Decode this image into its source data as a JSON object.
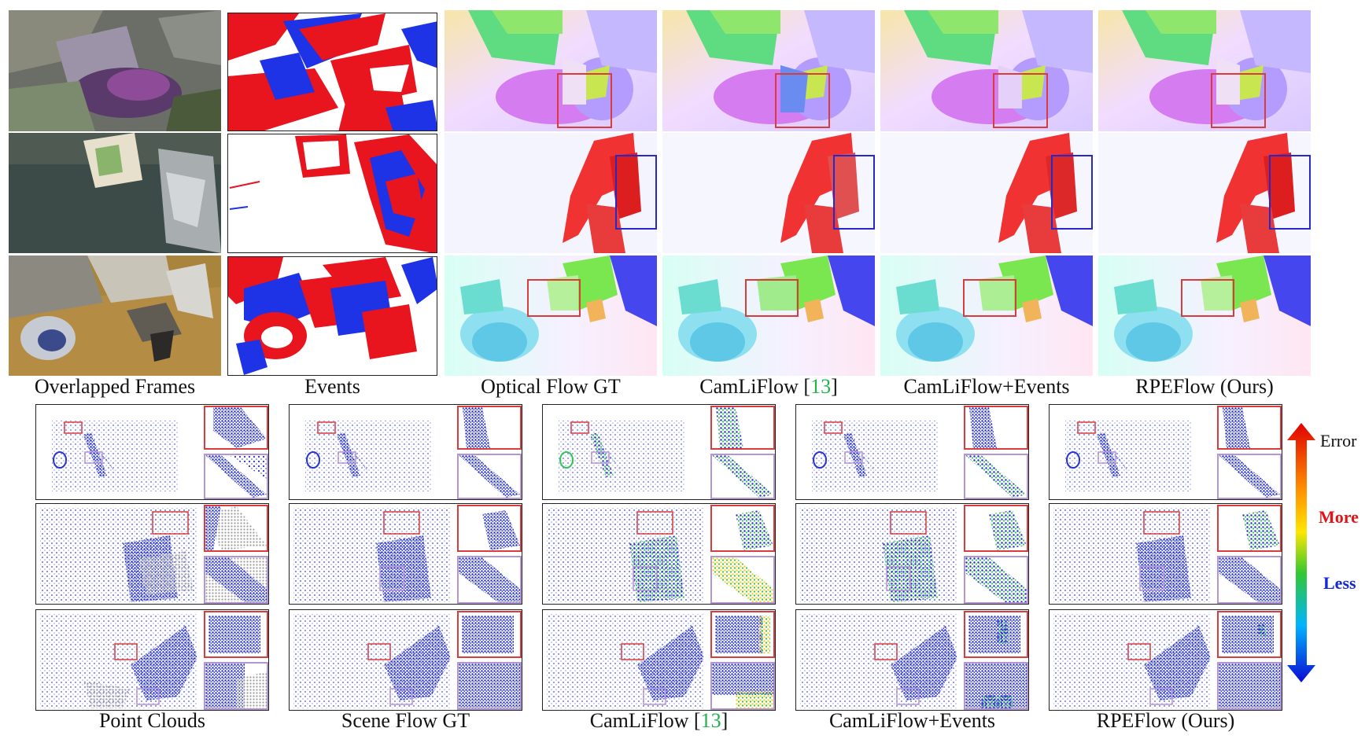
{
  "top_captions": {
    "overlapped": "Overlapped Frames",
    "events": "Events",
    "flow_gt": "Optical Flow GT",
    "camliflow_prefix": "CamLiFlow [",
    "camliflow_ref": "13",
    "camliflow_suffix": "]",
    "camliflow_events": "CamLiFlow+Events",
    "rpeflow": "RPEFlow (Ours)"
  },
  "bottom_captions": {
    "point_clouds": "Point Clouds",
    "scene_flow_gt": "Scene Flow GT",
    "camliflow_prefix": "CamLiFlow [",
    "camliflow_ref": "13",
    "camliflow_suffix": "]",
    "camliflow_events": "CamLiFlow+Events",
    "rpeflow": "RPEFlow (Ours)"
  },
  "legend": {
    "error": "Error",
    "more": "More",
    "less": "Less"
  },
  "colors": {
    "event_red": "#e8141e",
    "event_blue": "#1e32e6",
    "highlight_red": "#d83c3c",
    "highlight_blue": "#2828c8",
    "highlight_purple": "#b496d2",
    "citation_green": "#22b14c",
    "legend_more": "#e01414",
    "legend_less": "#1428d2"
  }
}
